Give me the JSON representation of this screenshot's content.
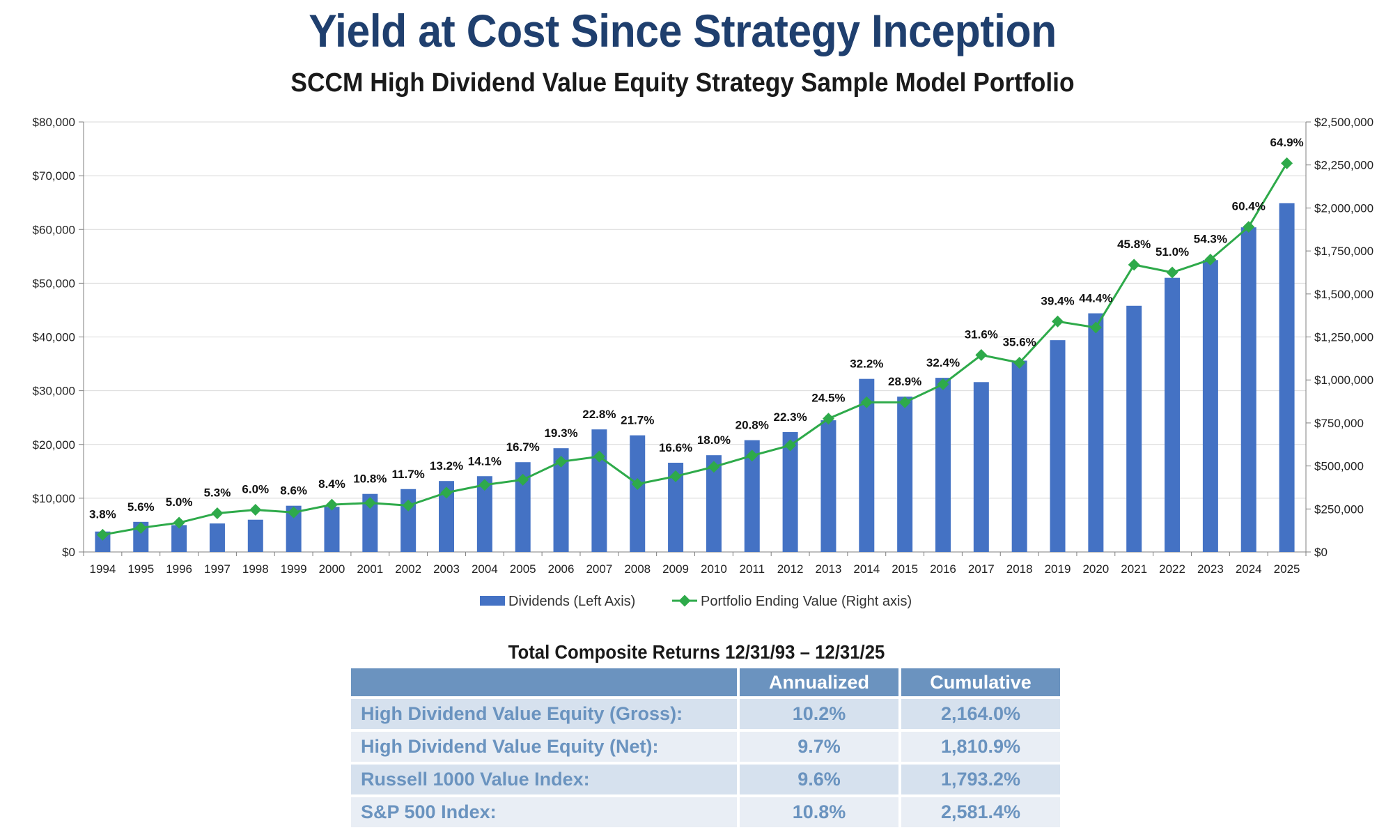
{
  "header": {
    "title": "Yield at Cost Since Strategy Inception",
    "subtitle": "SCCM High Dividend Value Equity Strategy Sample Model Portfolio"
  },
  "chart_data": {
    "type": "bar",
    "categories": [
      "1994",
      "1995",
      "1996",
      "1997",
      "1998",
      "1999",
      "2000",
      "2001",
      "2002",
      "2003",
      "2004",
      "2005",
      "2006",
      "2007",
      "2008",
      "2009",
      "2010",
      "2011",
      "2012",
      "2013",
      "2014",
      "2015",
      "2016",
      "2017",
      "2018",
      "2019",
      "2020",
      "2021",
      "2022",
      "2023",
      "2024",
      "2025"
    ],
    "series": [
      {
        "name": "Dividends (Left Axis)",
        "type": "bar",
        "axis": "left",
        "color": "#4472c4",
        "values": [
          3800,
          5600,
          5000,
          5300,
          6000,
          8600,
          8400,
          10800,
          11700,
          13200,
          14100,
          16700,
          19300,
          22800,
          21700,
          16600,
          18000,
          20800,
          22300,
          24500,
          32200,
          28900,
          32400,
          31600,
          35600,
          39400,
          44400,
          45800,
          51000,
          54300,
          60400,
          64900
        ]
      },
      {
        "name": "Portfolio Ending Value (Right axis)",
        "type": "line",
        "axis": "right",
        "color": "#2eaa4a",
        "values": [
          100000,
          140000,
          170000,
          225000,
          245000,
          230000,
          275000,
          285000,
          270000,
          345000,
          390000,
          420000,
          525000,
          555000,
          395000,
          440000,
          495000,
          560000,
          620000,
          775000,
          870000,
          870000,
          975000,
          1145000,
          1100000,
          1340000,
          1305000,
          1670000,
          1625000,
          1700000,
          1890000,
          2260000
        ]
      }
    ],
    "data_labels": [
      "3.8%",
      "5.6%",
      "5.0%",
      "5.3%",
      "6.0%",
      "8.6%",
      "8.4%",
      "10.8%",
      "11.7%",
      "13.2%",
      "14.1%",
      "16.7%",
      "19.3%",
      "22.8%",
      "21.7%",
      "16.6%",
      "18.0%",
      "20.8%",
      "22.3%",
      "24.5%",
      "32.2%",
      "28.9%",
      "32.4%",
      "31.6%",
      "35.6%",
      "39.4%",
      "44.4%",
      "45.8%",
      "51.0%",
      "54.3%",
      "60.4%",
      "64.9%"
    ],
    "y_left": {
      "ylim": [
        0,
        80000
      ],
      "ticks": [
        "$0",
        "$10,000",
        "$20,000",
        "$30,000",
        "$40,000",
        "$50,000",
        "$60,000",
        "$70,000",
        "$80,000"
      ]
    },
    "y_right": {
      "ylim": [
        0,
        2500000
      ],
      "ticks": [
        "$0",
        "$250,000",
        "$500,000",
        "$750,000",
        "$1,000,000",
        "$1,250,000",
        "$1,500,000",
        "$1,750,000",
        "$2,000,000",
        "$2,250,000",
        "$2,500,000"
      ]
    },
    "grid": "horizontal",
    "legend": "bottom"
  },
  "returns_table": {
    "title": "Total Composite Returns 12/31/93 – 12/31/25",
    "columns": [
      "Annualized",
      "Cumulative"
    ],
    "rows": [
      {
        "name": "High Dividend Value Equity (Gross):",
        "annualized": "10.2%",
        "cumulative": "2,164.0%"
      },
      {
        "name": "High Dividend Value Equity (Net):",
        "annualized": "9.7%",
        "cumulative": "1,810.9%"
      },
      {
        "name": "Russell 1000 Value Index:",
        "annualized": "9.6%",
        "cumulative": "1,793.2%"
      },
      {
        "name": "S&P 500 Index:",
        "annualized": "10.8%",
        "cumulative": "2,581.4%"
      }
    ]
  }
}
